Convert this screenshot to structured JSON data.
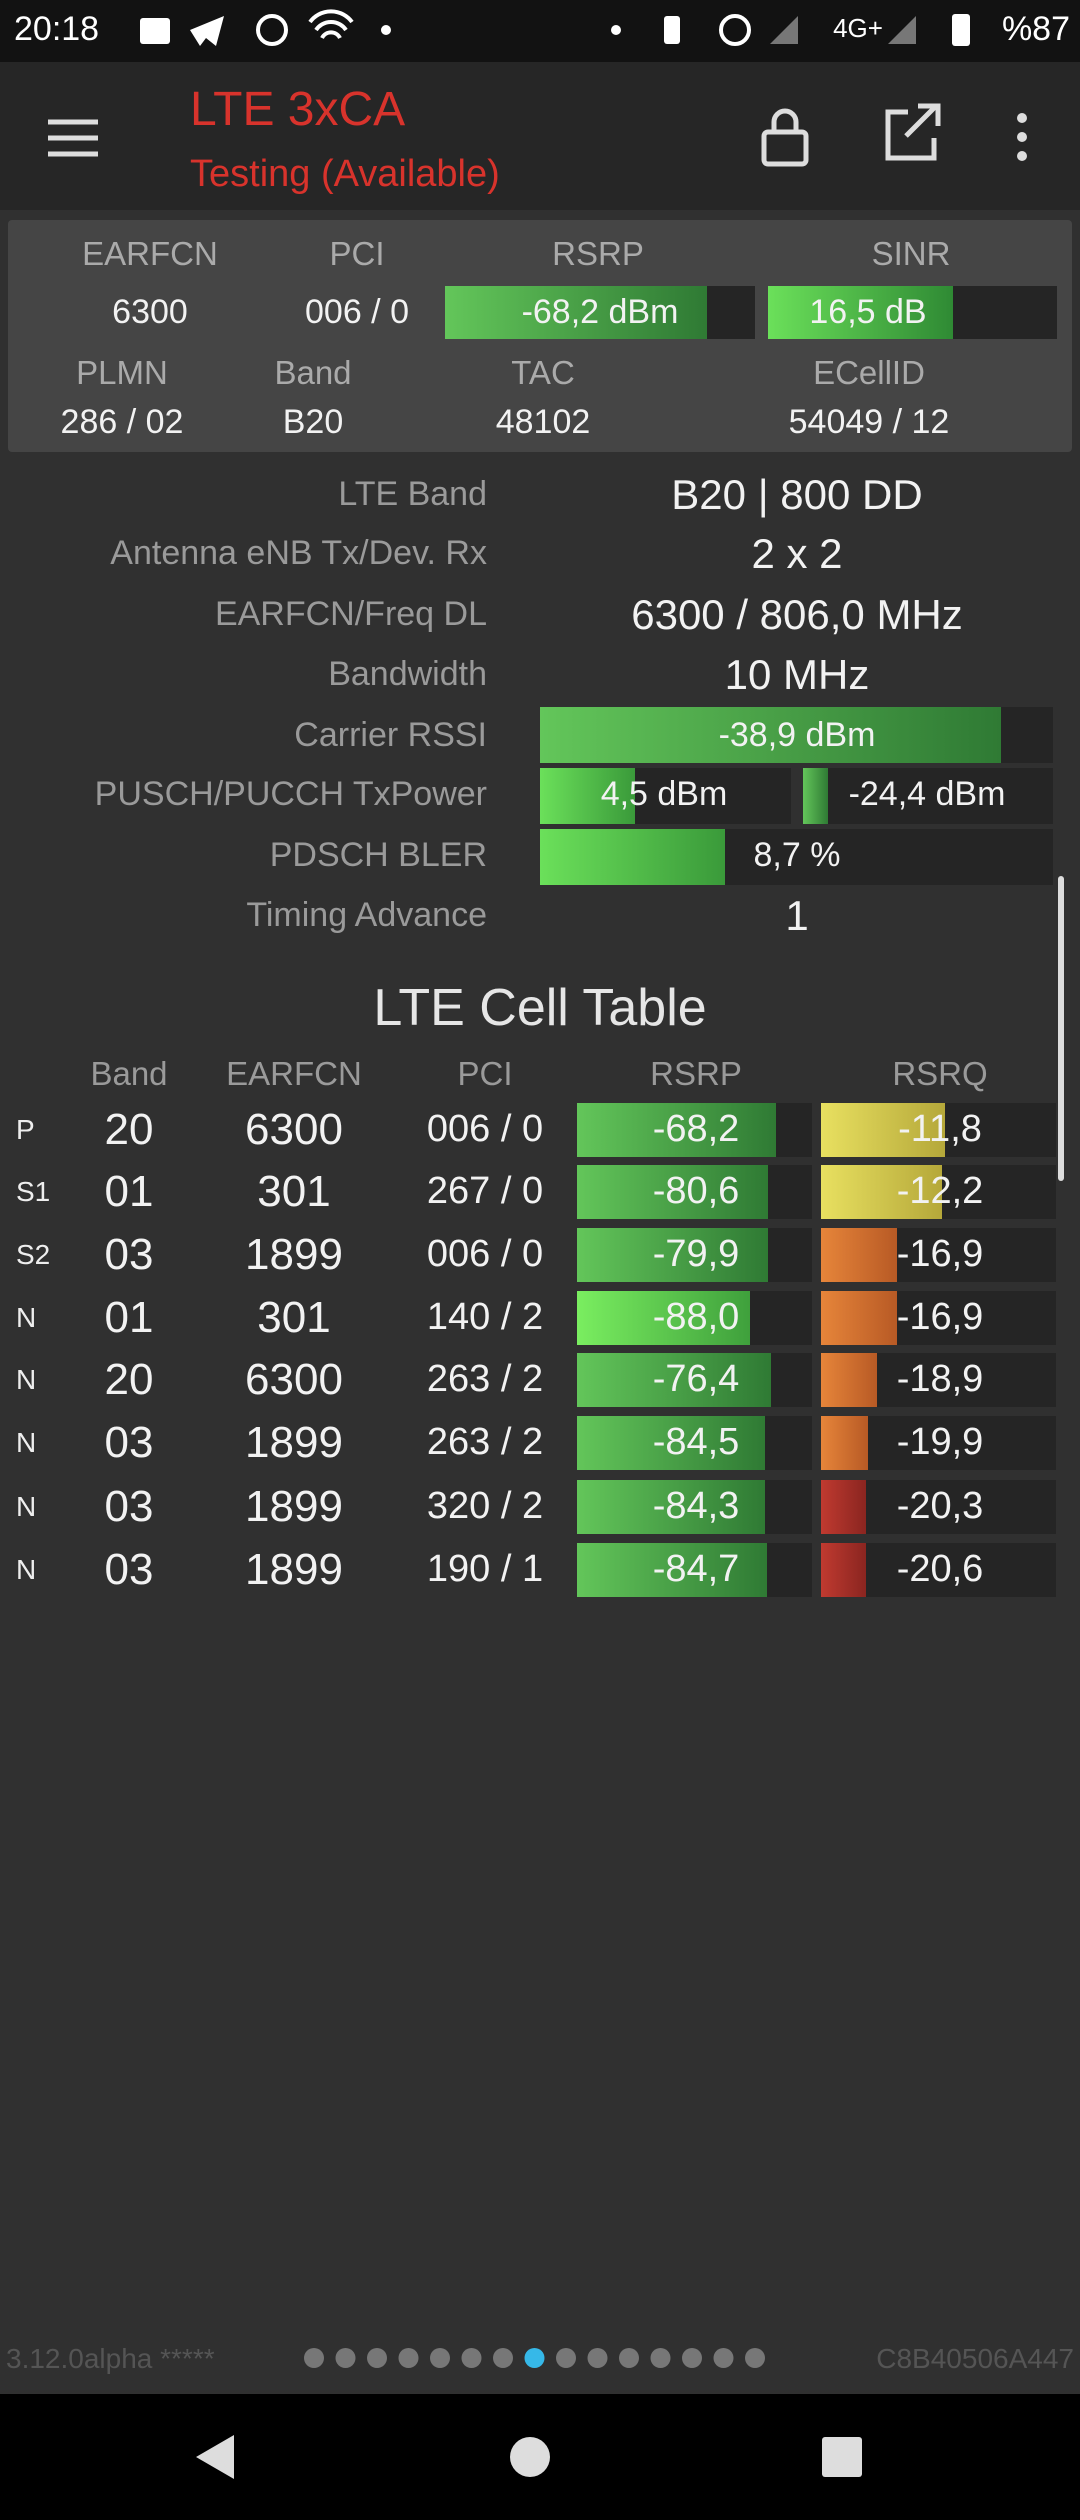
{
  "status_bar": {
    "time": "20:18",
    "network": "4G+",
    "battery": "%87"
  },
  "app_bar": {
    "title": "LTE 3xCA",
    "subtitle": "Testing (Available)"
  },
  "summary": {
    "headers": [
      "EARFCN",
      "PCI",
      "RSRP",
      "SINR"
    ],
    "values": [
      "6300",
      "006 / 0",
      "-68,2 dBm",
      "16,5 dB"
    ],
    "headers2": [
      "PLMN",
      "Band",
      "TAC",
      "ECellID"
    ],
    "values2": [
      "286 / 02",
      "B20",
      "48102",
      "54049 / 12"
    ]
  },
  "details": [
    {
      "label": "LTE Band",
      "values": [
        "B20 | 800 DD"
      ]
    },
    {
      "label": "Antenna eNB Tx/Dev. Rx",
      "values": [
        "2 x 2"
      ]
    },
    {
      "label": "EARFCN/Freq DL",
      "values": [
        "6300 / 806,0 MHz"
      ]
    },
    {
      "label": "Bandwidth",
      "values": [
        "10 MHz"
      ]
    },
    {
      "label": "Carrier RSSI",
      "values": [
        "-38,9 dBm"
      ]
    },
    {
      "label": "PUSCH/PUCCH TxPower",
      "values": [
        "4,5 dBm",
        "-24,4 dBm"
      ]
    },
    {
      "label": "PDSCH BLER",
      "values": [
        "8,7 %"
      ]
    },
    {
      "label": "Timing Advance",
      "values": [
        "1"
      ]
    }
  ],
  "cell_table": {
    "title": "LTE Cell Table",
    "columns": [
      "Band",
      "EARFCN",
      "PCI",
      "RSRP",
      "RSRQ"
    ],
    "rows": [
      [
        "P",
        "20",
        "6300",
        "006 / 0",
        "-68,2",
        "-11,8"
      ],
      [
        "S1",
        "01",
        "301",
        "267 / 0",
        "-80,6",
        "-12,2"
      ],
      [
        "S2",
        "03",
        "1899",
        "006 / 0",
        "-79,9",
        "-16,9"
      ],
      [
        "N",
        "01",
        "301",
        "140 / 2",
        "-88,0",
        "-16,9"
      ],
      [
        "N",
        "20",
        "6300",
        "263 / 2",
        "-76,4",
        "-18,9"
      ],
      [
        "N",
        "03",
        "1899",
        "263 / 2",
        "-84,5",
        "-19,9"
      ],
      [
        "N",
        "03",
        "1899",
        "320 / 2",
        "-84,3",
        "-20,3"
      ],
      [
        "N",
        "03",
        "1899",
        "190 / 1",
        "-84,7",
        "-20,6"
      ]
    ]
  },
  "footer": {
    "version": "3.12.0alpha *****",
    "device_id": "C8B40506A447"
  }
}
